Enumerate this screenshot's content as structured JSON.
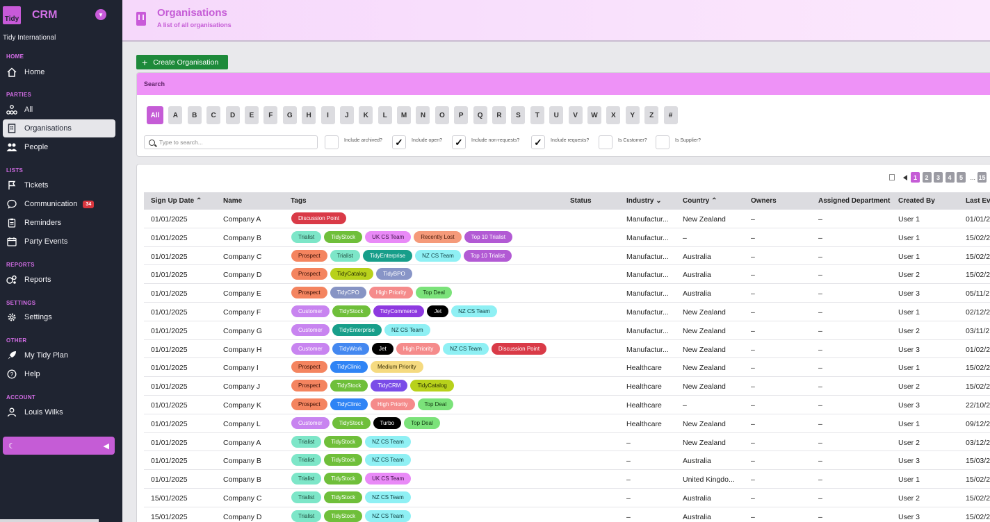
{
  "sidebar": {
    "logo_text": "Tidy",
    "app_name": "CRM",
    "org_name": "Tidy International",
    "sections": {
      "home": "HOME",
      "parties": "PARTIES",
      "lists": "LISTS",
      "reports": "REPORTS",
      "settings": "SETTINGS",
      "other": "OTHER",
      "account": "ACCOUNT"
    },
    "items": {
      "home": "Home",
      "all": "All",
      "organisations": "Organisations",
      "people": "People",
      "tickets": "Tickets",
      "communication": "Communication",
      "communication_badge": "34",
      "reminders": "Reminders",
      "party_events": "Party Events",
      "reports": "Reports",
      "settings": "Settings",
      "my_tidy_plan": "My Tidy Plan",
      "help": "Help",
      "user": "Louis Wilks"
    },
    "icons": {
      "home": "home-icon",
      "all": "sitemap-icon",
      "organisations": "building-icon",
      "people": "people-icon",
      "tickets": "flag-icon",
      "communication": "chat-icon",
      "reminders": "clipboard-icon",
      "party_events": "calendar-icon",
      "reports": "reports-icon",
      "settings": "gear-icon",
      "plan": "rocket-icon",
      "help": "help-icon",
      "user": "user-icon",
      "theme": "moon-icon",
      "collapse": "chevron-left-icon"
    }
  },
  "header": {
    "title": "Organisations",
    "subtitle": "A list of all organisations"
  },
  "actions": {
    "create": "Create Organisation"
  },
  "search": {
    "heading": "Search",
    "letters": [
      "All",
      "A",
      "B",
      "C",
      "D",
      "E",
      "F",
      "G",
      "H",
      "I",
      "J",
      "K",
      "L",
      "M",
      "N",
      "O",
      "P",
      "Q",
      "R",
      "S",
      "T",
      "U",
      "V",
      "W",
      "X",
      "Y",
      "Z",
      "#"
    ],
    "placeholder": "Type to search...",
    "filters": [
      {
        "label": "Include archived?",
        "checked": false
      },
      {
        "label": "Include open?",
        "checked": true
      },
      {
        "label": "Include non-requests?",
        "checked": true
      },
      {
        "label": "Include requests?",
        "checked": true
      },
      {
        "label": "Is Customer?",
        "checked": false
      },
      {
        "label": "Is Supplier?",
        "checked": false
      }
    ]
  },
  "pagination": {
    "pages": [
      "1",
      "2",
      "3",
      "4",
      "5"
    ],
    "ellipsis": "...",
    "last": "15",
    "current": "1"
  },
  "table": {
    "headers": {
      "signup": "Sign Up Date ⌃",
      "name": "Name",
      "tags": "Tags",
      "status": "Status",
      "industry": "Industry ⌄",
      "country": "Country ⌃",
      "owners": "Owners",
      "dept": "Assigned Department",
      "created_by": "Created By",
      "last": "Last Ev"
    },
    "tag_colors": {
      "Discussion Point": [
        "#d93a47",
        "#ffffff"
      ],
      "Trialist": [
        "#7de6c8",
        "#1e4a3d"
      ],
      "TidyStock": [
        "#6fbf3a",
        "#ffffff"
      ],
      "UK CS Team": [
        "#e98af7",
        "#3b0f44"
      ],
      "Recently Lost": [
        "#f59a7a",
        "#4a1b0c"
      ],
      "Top 10 Trialist": [
        "#b25ad4",
        "#ffffff"
      ],
      "Prospect": [
        "#f4845f",
        "#3a1006"
      ],
      "TidyEnterprise": [
        "#179e8a",
        "#ffffff"
      ],
      "NZ CS Team": [
        "#8ff0f4",
        "#0f3e40"
      ],
      "TidyCatalog": [
        "#b8d11b",
        "#2a3005"
      ],
      "TidyBPO": [
        "#8895c7",
        "#ffffff"
      ],
      "TidyCPO": [
        "#8794c4",
        "#ffffff"
      ],
      "High Priority": [
        "#f58b8b",
        "#ffffff"
      ],
      "Top Deal": [
        "#7be27a",
        "#123a12"
      ],
      "Customer": [
        "#c884f0",
        "#ffffff"
      ],
      "TidyCommerce": [
        "#8e3ae0",
        "#ffffff"
      ],
      "Jet": [
        "#000000",
        "#ffffff"
      ],
      "TidyWork": [
        "#4488f0",
        "#ffffff"
      ],
      "TidyClinic": [
        "#2f84f5",
        "#ffffff"
      ],
      "Medium Priority": [
        "#f5da80",
        "#3a2f05"
      ],
      "TidyCRM": [
        "#7a4ce8",
        "#ffffff"
      ],
      "Turbo": [
        "#000000",
        "#ffffff"
      ]
    },
    "rows": [
      {
        "date": "01/01/2025",
        "name": "Company A",
        "tags": [
          "Discussion Point"
        ],
        "status": "",
        "industry": "Manufactur...",
        "country": "New Zealand",
        "owners": "–",
        "dept": "–",
        "created_by": "User 1",
        "last": "01/01/2"
      },
      {
        "date": "01/01/2025",
        "name": "Company B",
        "tags": [
          "Trialist",
          "TidyStock",
          "UK CS Team",
          "Recently Lost",
          "Top 10 Trialist"
        ],
        "status": "",
        "industry": "Manufactur...",
        "country": "–",
        "owners": "–",
        "dept": "–",
        "created_by": "User 1",
        "last": "15/02/2"
      },
      {
        "date": "01/01/2025",
        "name": "Company C",
        "tags": [
          "Prospect",
          "Trialist",
          "TidyEnterprise",
          "NZ CS Team",
          "Top 10 Trialist"
        ],
        "status": "",
        "industry": "Manufactur...",
        "country": "Australia",
        "owners": "–",
        "dept": "–",
        "created_by": "User 1",
        "last": "15/02/2"
      },
      {
        "date": "01/01/2025",
        "name": "Company D",
        "tags": [
          "Prospect",
          "TidyCatalog",
          "TidyBPO"
        ],
        "status": "",
        "industry": "Manufactur...",
        "country": "Australia",
        "owners": "–",
        "dept": "–",
        "created_by": "User 2",
        "last": "15/02/2"
      },
      {
        "date": "01/01/2025",
        "name": "Company E",
        "tags": [
          "Prospect",
          "TidyCPO",
          "High Priority",
          "Top Deal"
        ],
        "status": "",
        "industry": "Manufactur...",
        "country": "Australia",
        "owners": "–",
        "dept": "–",
        "created_by": "User 3",
        "last": "05/11/2"
      },
      {
        "date": "01/01/2025",
        "name": "Company F",
        "tags": [
          "Customer",
          "TidyStock",
          "TidyCommerce",
          "Jet",
          "NZ CS Team"
        ],
        "status": "",
        "industry": "Manufactur...",
        "country": "New Zealand",
        "owners": "–",
        "dept": "–",
        "created_by": "User 1",
        "last": "02/12/2"
      },
      {
        "date": "01/01/2025",
        "name": "Company G",
        "tags": [
          "Customer",
          "TidyEnterprise",
          "NZ CS Team"
        ],
        "status": "",
        "industry": "Manufactur...",
        "country": "New Zealand",
        "owners": "–",
        "dept": "–",
        "created_by": "User 2",
        "last": "03/11/2"
      },
      {
        "date": "01/01/2025",
        "name": "Company H",
        "tags": [
          "Customer",
          "TidyWork",
          "Jet",
          "High Priority",
          "NZ CS Team",
          "Discussion Point"
        ],
        "status": "",
        "industry": "Manufactur...",
        "country": "New Zealand",
        "owners": "–",
        "dept": "–",
        "created_by": "User 3",
        "last": "01/02/2"
      },
      {
        "date": "01/01/2025",
        "name": "Company I",
        "tags": [
          "Prospect",
          "TidyClinic",
          "Medium Priority"
        ],
        "status": "",
        "industry": "Healthcare",
        "country": "New Zealand",
        "owners": "–",
        "dept": "–",
        "created_by": "User 1",
        "last": "15/02/2"
      },
      {
        "date": "01/01/2025",
        "name": "Company J",
        "tags": [
          "Prospect",
          "TidyStock",
          "TidyCRM",
          "TidyCatalog"
        ],
        "status": "",
        "industry": "Healthcare",
        "country": "New Zealand",
        "owners": "–",
        "dept": "–",
        "created_by": "User 2",
        "last": "15/02/2"
      },
      {
        "date": "01/01/2025",
        "name": "Company K",
        "tags": [
          "Prospect",
          "TidyClinic",
          "High Priority",
          "Top Deal"
        ],
        "status": "",
        "industry": "Healthcare",
        "country": "–",
        "owners": "–",
        "dept": "–",
        "created_by": "User 3",
        "last": "22/10/2"
      },
      {
        "date": "01/01/2025",
        "name": "Company L",
        "tags": [
          "Customer",
          "TidyStock",
          "Turbo",
          "Top Deal"
        ],
        "status": "",
        "industry": "Healthcare",
        "country": "New Zealand",
        "owners": "–",
        "dept": "–",
        "created_by": "User 1",
        "last": "09/12/2"
      },
      {
        "date": "01/01/2025",
        "name": "Company A",
        "tags": [
          "Trialist",
          "TidyStock",
          "NZ CS Team"
        ],
        "status": "",
        "industry": "–",
        "country": "New Zealand",
        "owners": "–",
        "dept": "–",
        "created_by": "User 2",
        "last": "03/12/2"
      },
      {
        "date": "01/01/2025",
        "name": "Company B",
        "tags": [
          "Trialist",
          "TidyStock",
          "NZ CS Team"
        ],
        "status": "",
        "industry": "–",
        "country": "Australia",
        "owners": "–",
        "dept": "–",
        "created_by": "User 3",
        "last": "15/03/2"
      },
      {
        "date": "01/01/2025",
        "name": "Company B",
        "tags": [
          "Trialist",
          "TidyStock",
          "UK CS Team"
        ],
        "status": "",
        "industry": "–",
        "country": "United Kingdo...",
        "owners": "–",
        "dept": "–",
        "created_by": "User 1",
        "last": "15/02/2"
      },
      {
        "date": "15/01/2025",
        "name": "Company C",
        "tags": [
          "Trialist",
          "TidyStock",
          "NZ CS Team"
        ],
        "status": "",
        "industry": "–",
        "country": "Australia",
        "owners": "–",
        "dept": "–",
        "created_by": "User 2",
        "last": "15/02/2"
      },
      {
        "date": "15/01/2025",
        "name": "Company D",
        "tags": [
          "Trialist",
          "TidyStock",
          "NZ CS Team"
        ],
        "status": "",
        "industry": "–",
        "country": "Australia",
        "owners": "–",
        "dept": "–",
        "created_by": "User 3",
        "last": "15/02/2"
      }
    ]
  }
}
